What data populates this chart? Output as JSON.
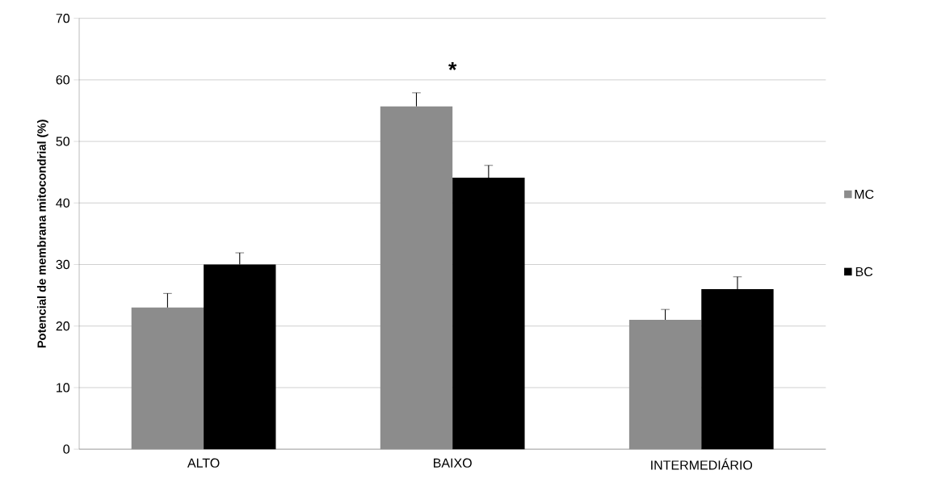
{
  "chart_data": {
    "type": "bar",
    "ylabel": "Potencial de membrana mitocondrial (%)",
    "categories": [
      "ALTO",
      "BAIXO",
      "INTERMEDIÁRIO"
    ],
    "series": [
      {
        "name": "MC",
        "color": "#8c8c8c",
        "values": [
          23.0,
          55.7,
          21.0
        ],
        "errors": [
          2.3,
          2.2,
          1.7
        ]
      },
      {
        "name": "BC",
        "color": "#000000",
        "values": [
          30.0,
          44.1,
          26.0
        ],
        "errors": [
          1.9,
          2.0,
          2.0
        ]
      }
    ],
    "ylim": [
      0,
      70
    ],
    "yticks": [
      0,
      10,
      20,
      30,
      40,
      50,
      60,
      70
    ],
    "grid": "y",
    "legend": "right",
    "annotations": [
      "*"
    ]
  }
}
